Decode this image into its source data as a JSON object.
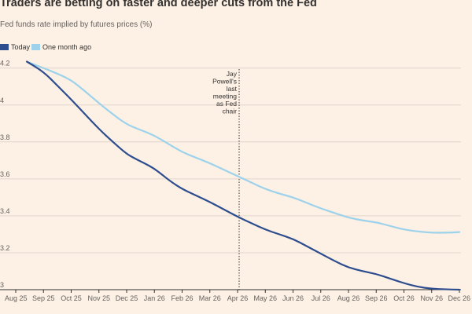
{
  "chart_data": {
    "type": "line",
    "title": "Traders are betting on faster and deeper cuts from the Fed",
    "subtitle": "Fed funds rate implied by futures prices (%)",
    "categories": [
      "Aug 25",
      "Sep 25",
      "Oct 25",
      "Nov 25",
      "Dec 25",
      "Jan 26",
      "Feb 26",
      "Mar 26",
      "Apr 26",
      "May 26",
      "Jun 26",
      "Jul 26",
      "Aug 26",
      "Sep 26",
      "Oct 26",
      "Nov 26",
      "Dec 26"
    ],
    "y_tick_labels": [
      "3",
      "3.2",
      "3.4",
      "3.6",
      "3.8",
      "4",
      "4.2"
    ],
    "y_tick_values": [
      3.0,
      3.2,
      3.4,
      3.6,
      3.8,
      4.0,
      4.2
    ],
    "ylim": [
      3.0,
      4.22
    ],
    "series": [
      {
        "name": "Today",
        "color": "#2e4d8e",
        "x": [
          0.4,
          1,
          1.5,
          2,
          2.5,
          3,
          3.5,
          4,
          4.3,
          4.7,
          5,
          5.3,
          5.6,
          6,
          6.5,
          7,
          7.5,
          8,
          8.5,
          9,
          9.5,
          10,
          10.5,
          11,
          11.5,
          12,
          12.5,
          13,
          13.5,
          14,
          14.5,
          15,
          15.5,
          16
        ],
        "values": [
          4.235,
          4.18,
          4.105,
          4.03,
          3.95,
          3.87,
          3.8,
          3.735,
          3.71,
          3.68,
          3.655,
          3.62,
          3.585,
          3.545,
          3.51,
          3.475,
          3.435,
          3.395,
          3.36,
          3.325,
          3.3,
          3.275,
          3.235,
          3.195,
          3.155,
          3.12,
          3.1,
          3.085,
          3.06,
          3.035,
          3.015,
          3.005,
          3.002,
          3.0
        ]
      },
      {
        "name": "One month ago",
        "color": "#9dd2ea",
        "x": [
          0.4,
          1,
          1.5,
          2,
          2.5,
          3,
          3.5,
          4,
          4.5,
          5,
          5.5,
          6,
          6.5,
          7,
          7.5,
          8,
          8.5,
          9,
          9.5,
          10,
          10.5,
          11,
          11.5,
          12,
          12.5,
          13,
          13.5,
          14,
          14.5,
          15,
          15.5,
          16
        ],
        "values": [
          4.235,
          4.2,
          4.17,
          4.135,
          4.075,
          4.01,
          3.95,
          3.895,
          3.865,
          3.835,
          3.79,
          3.745,
          3.715,
          3.685,
          3.65,
          3.615,
          3.58,
          3.545,
          3.52,
          3.5,
          3.47,
          3.44,
          3.415,
          3.39,
          3.375,
          3.365,
          3.345,
          3.325,
          3.315,
          3.308,
          3.308,
          3.312
        ]
      }
    ],
    "annotation": {
      "lines": [
        "Jay",
        "Powell's",
        "last",
        "meeting",
        "as Fed",
        "chair"
      ],
      "x": 8
    },
    "grid": true
  }
}
